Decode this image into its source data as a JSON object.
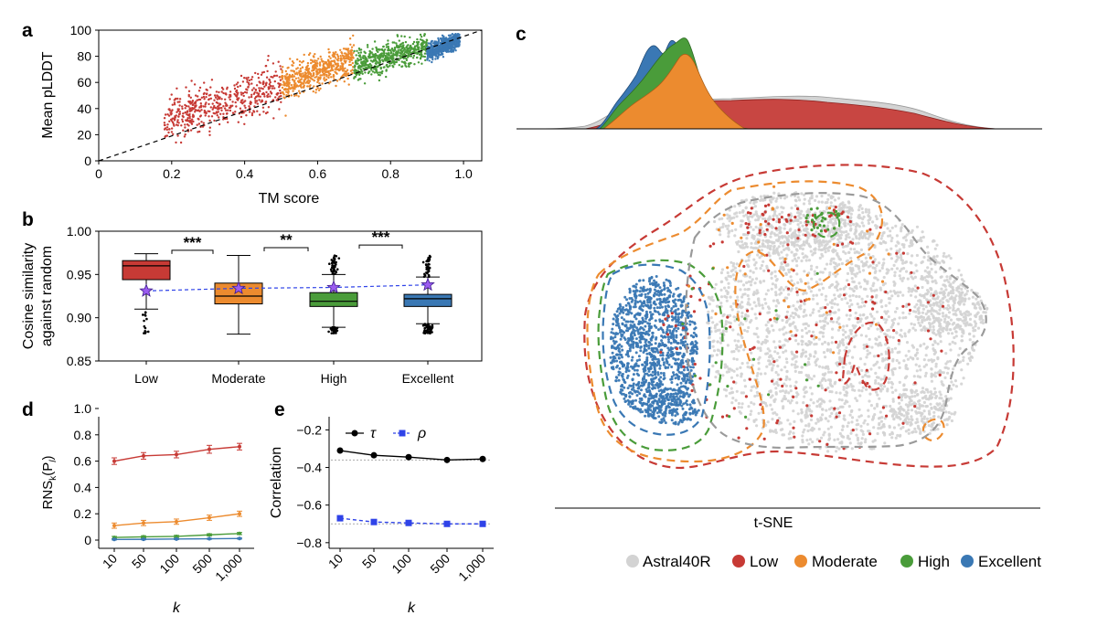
{
  "colors": {
    "low": "#c73a35",
    "moderate": "#ec8b2f",
    "high": "#4a9c3a",
    "excellent": "#3a78b4",
    "astral": "#d3d3d3",
    "star": "#9b5cf0",
    "dash": "#2f43e8"
  },
  "panels": {
    "a": "a",
    "b": "b",
    "c": "c",
    "d": "d",
    "e": "e"
  },
  "chart_data": [
    {
      "id": "a",
      "type": "scatter",
      "xlabel": "TM score",
      "ylabel": "Mean pLDDT",
      "xlim": [
        0,
        1.05
      ],
      "ylim": [
        0,
        100
      ],
      "xticks": [
        0,
        0.2,
        0.4,
        0.6,
        0.8,
        1.0
      ],
      "xtick_labels": [
        "0",
        "0.2",
        "0.4",
        "0.6",
        "0.8",
        "1.0"
      ],
      "yticks": [
        0,
        20,
        40,
        60,
        80,
        100
      ],
      "ytick_labels": [
        "0",
        "20",
        "40",
        "60",
        "80",
        "100"
      ],
      "reference_line": {
        "x": [
          0,
          1.05
        ],
        "y": [
          0,
          105
        ],
        "style": "dashed"
      },
      "series": [
        {
          "name": "Low",
          "x_range": [
            0.18,
            0.5
          ],
          "y_trend": [
            30,
            58
          ],
          "y_spread": 14
        },
        {
          "name": "Moderate",
          "x_range": [
            0.5,
            0.7
          ],
          "y_trend": [
            58,
            78
          ],
          "y_spread": 11
        },
        {
          "name": "High",
          "x_range": [
            0.7,
            0.9
          ],
          "y_trend": [
            72,
            88
          ],
          "y_spread": 9
        },
        {
          "name": "Excellent",
          "x_range": [
            0.9,
            0.99
          ],
          "y_trend": [
            82,
            93
          ],
          "y_spread": 5
        }
      ]
    },
    {
      "id": "b",
      "type": "box",
      "ylabel": "Cosine similarity against random",
      "ylabel_lines": [
        "Cosine similarity",
        "against random"
      ],
      "ylim": [
        0.85,
        1.0
      ],
      "yticks": [
        0.85,
        0.9,
        0.95,
        1.0
      ],
      "ytick_labels": [
        "0.85",
        "0.90",
        "0.95",
        "1.00"
      ],
      "categories": [
        "Low",
        "Moderate",
        "High",
        "Excellent"
      ],
      "boxes": [
        {
          "q1": 0.944,
          "median": 0.96,
          "q3": 0.966,
          "whisker_low": 0.91,
          "whisker_high": 0.974,
          "mean": 0.931
        },
        {
          "q1": 0.916,
          "median": 0.925,
          "q3": 0.94,
          "whisker_low": 0.881,
          "whisker_high": 0.972,
          "mean": 0.934
        },
        {
          "q1": 0.913,
          "median": 0.919,
          "q3": 0.929,
          "whisker_low": 0.889,
          "whisker_high": 0.95,
          "mean": 0.935
        },
        {
          "q1": 0.913,
          "median": 0.922,
          "q3": 0.927,
          "whisker_low": 0.893,
          "whisker_high": 0.947,
          "mean": 0.938
        }
      ],
      "significance": [
        {
          "between": [
            0,
            1
          ],
          "label": "***",
          "y": 0.978
        },
        {
          "between": [
            1,
            2
          ],
          "label": "**",
          "y": 0.981
        },
        {
          "between": [
            2,
            3
          ],
          "label": "***",
          "y": 0.984
        }
      ]
    },
    {
      "id": "c",
      "type": "scatter",
      "xlabel": "t-SNE",
      "legend": [
        "Astral40R",
        "Low",
        "Moderate",
        "High",
        "Excellent"
      ],
      "legend_position": "bottom",
      "marginal": "density (top)"
    },
    {
      "id": "d",
      "type": "line",
      "xlabel": "k",
      "ylabel_main": "RNS",
      "ylabel_sub": "k",
      "ylabel_paren": "(P",
      "ylabel_psub": "l",
      "ylabel_close": ")",
      "categories": [
        "10",
        "50",
        "100",
        "500",
        "1,000"
      ],
      "ylim": [
        0,
        1.0
      ],
      "yticks": [
        0,
        0.2,
        0.4,
        0.6,
        0.8,
        1.0
      ],
      "ytick_labels": [
        "0",
        "0.2",
        "0.4",
        "0.6",
        "0.8",
        "1.0"
      ],
      "series": [
        {
          "name": "Low",
          "values": [
            0.6,
            0.64,
            0.65,
            0.69,
            0.71
          ],
          "err": [
            0.025,
            0.025,
            0.025,
            0.03,
            0.025
          ]
        },
        {
          "name": "Moderate",
          "values": [
            0.11,
            0.13,
            0.14,
            0.17,
            0.2
          ],
          "err": [
            0.02,
            0.02,
            0.02,
            0.02,
            0.02
          ]
        },
        {
          "name": "High",
          "values": [
            0.02,
            0.025,
            0.028,
            0.04,
            0.05
          ],
          "err": [
            0.008,
            0.008,
            0.008,
            0.008,
            0.008
          ]
        },
        {
          "name": "Excellent",
          "values": [
            0.005,
            0.006,
            0.008,
            0.01,
            0.012
          ],
          "err": [
            0.004,
            0.004,
            0.004,
            0.004,
            0.004
          ]
        }
      ]
    },
    {
      "id": "e",
      "type": "line",
      "xlabel": "k",
      "ylabel": "Correlation",
      "categories": [
        "10",
        "50",
        "100",
        "500",
        "1,000"
      ],
      "ylim": [
        -0.83,
        -0.13
      ],
      "yticks": [
        -0.8,
        -0.6,
        -0.4,
        -0.2
      ],
      "ytick_labels": [
        "−0.8",
        "−0.6",
        "−0.4",
        "−0.2"
      ],
      "series": [
        {
          "name": "τ",
          "values": [
            -0.31,
            -0.335,
            -0.345,
            -0.36,
            -0.355
          ],
          "ref": -0.36
        },
        {
          "name": "ρ",
          "values": [
            -0.67,
            -0.69,
            -0.695,
            -0.7,
            -0.7
          ],
          "ref": -0.7
        }
      ],
      "legend": [
        "τ",
        "ρ"
      ]
    }
  ]
}
